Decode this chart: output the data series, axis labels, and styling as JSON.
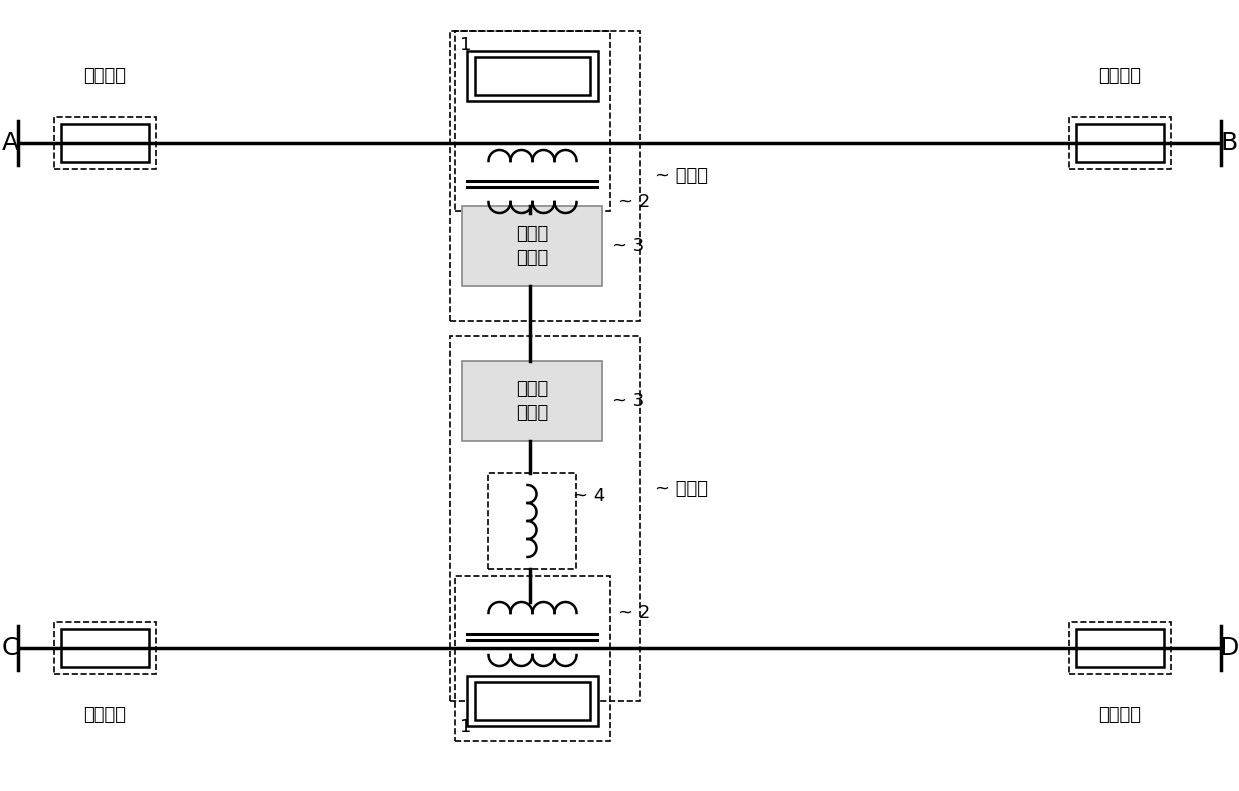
{
  "bg_color": "#ffffff",
  "line_color": "#000000",
  "dashed_color": "#000000",
  "label_A": "A",
  "label_B": "B",
  "label_C": "C",
  "label_D": "D",
  "switch_label": "线路开关",
  "vsc_label_line1": "电压源",
  "vsc_label_line2": "换流器",
  "label_1": "1",
  "label_2": "2",
  "label_3": "3",
  "label_4": "4",
  "group1_label": "~ 第一组",
  "group2_label": "~ 第二组",
  "fontsize_AB": 18,
  "fontsize_switch_label": 13,
  "fontsize_vsc": 13,
  "fontsize_number": 13,
  "fontsize_group": 13
}
